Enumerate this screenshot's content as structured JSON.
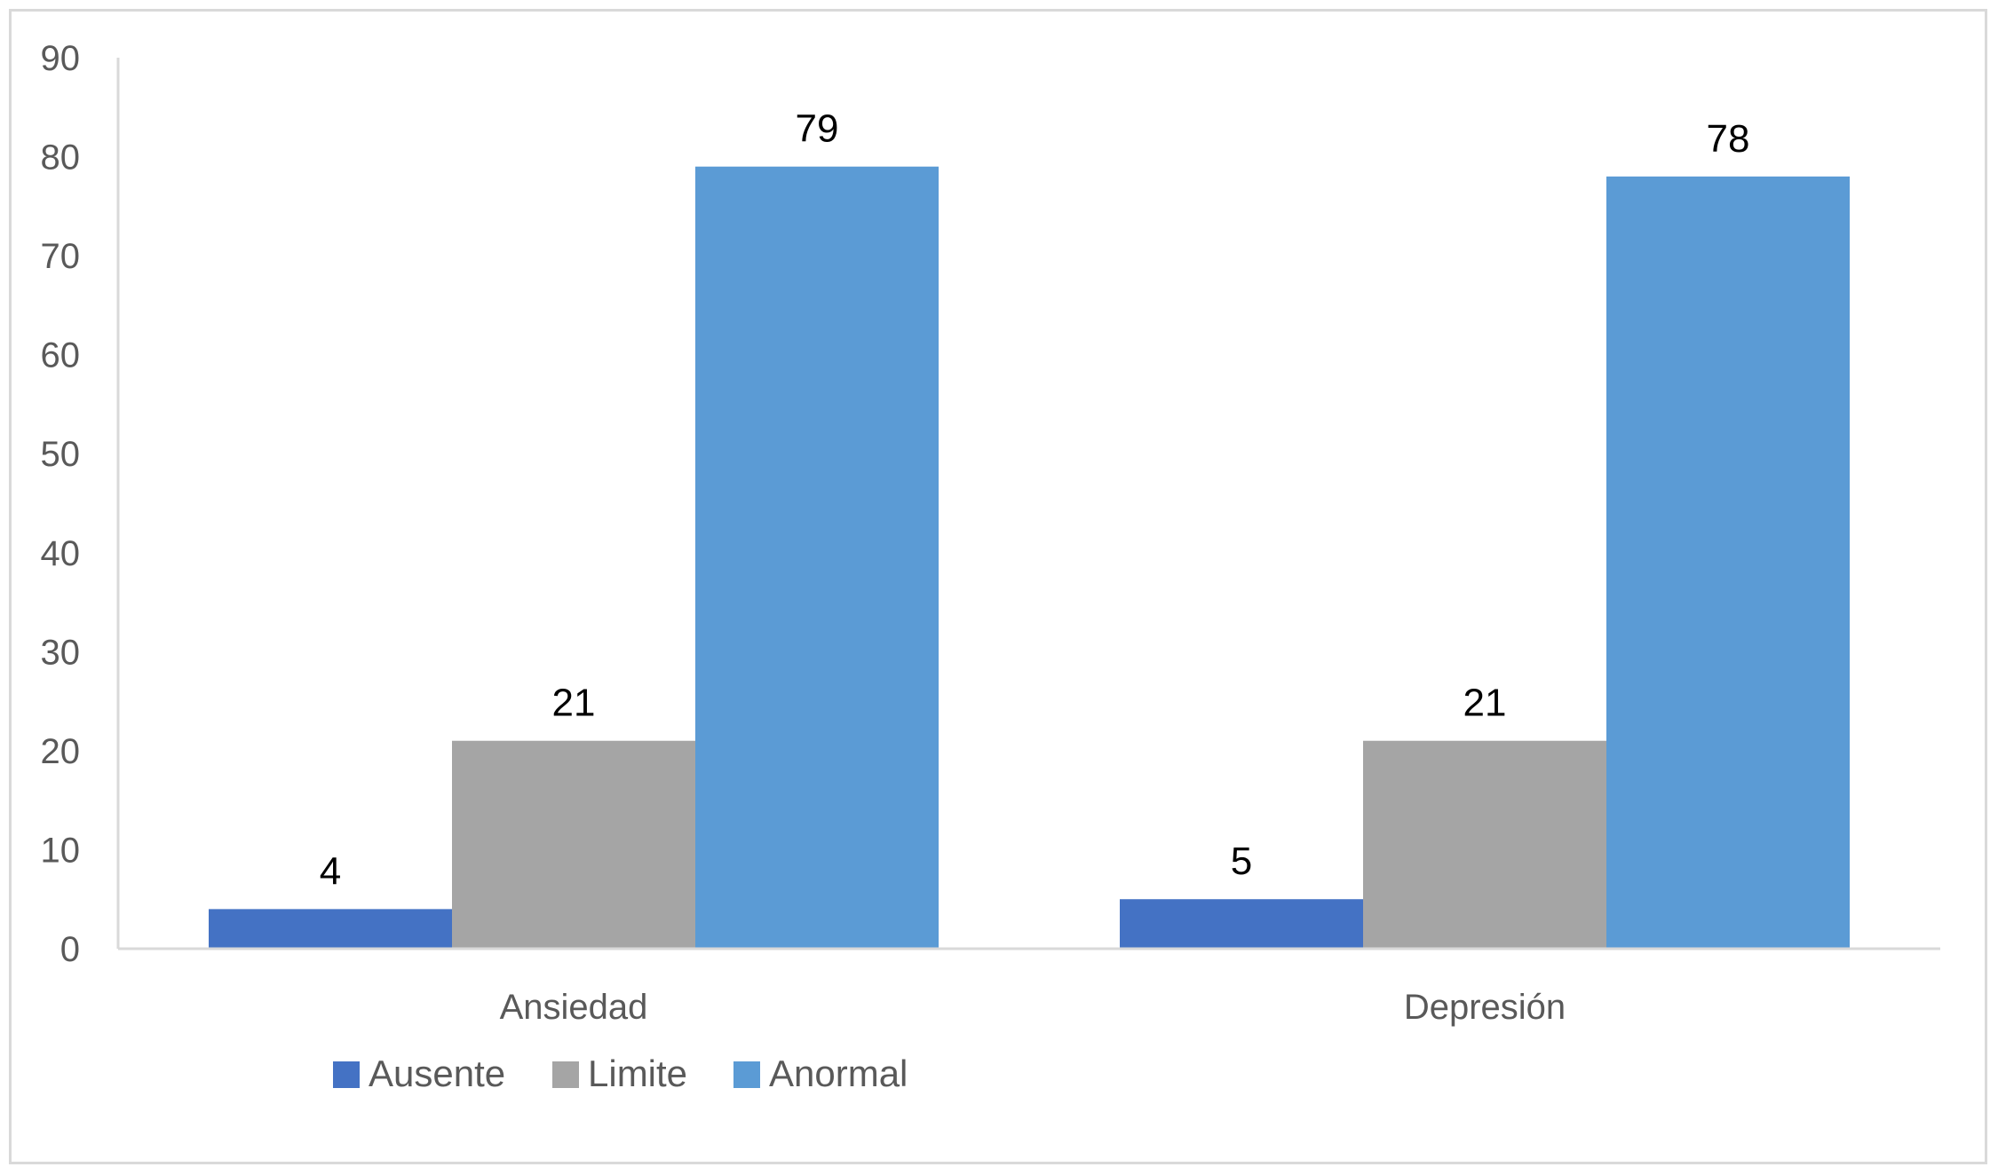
{
  "chart_data": {
    "type": "bar",
    "title": "",
    "xlabel": "",
    "ylabel": "",
    "categories": [
      "Ansiedad",
      "Depresión"
    ],
    "series": [
      {
        "name": "Ausente",
        "values": [
          4,
          5
        ],
        "color": "#4472C4"
      },
      {
        "name": "Limite",
        "values": [
          21,
          21
        ],
        "color": "#A5A5A5"
      },
      {
        "name": "Anormal",
        "values": [
          79,
          78
        ],
        "color": "#5B9BD5"
      }
    ],
    "ylim": [
      0,
      90
    ],
    "yticks": [
      0,
      10,
      20,
      30,
      40,
      50,
      60,
      70,
      80,
      90
    ],
    "grid": false,
    "data_labels": true,
    "legend_position": "bottom-left"
  }
}
